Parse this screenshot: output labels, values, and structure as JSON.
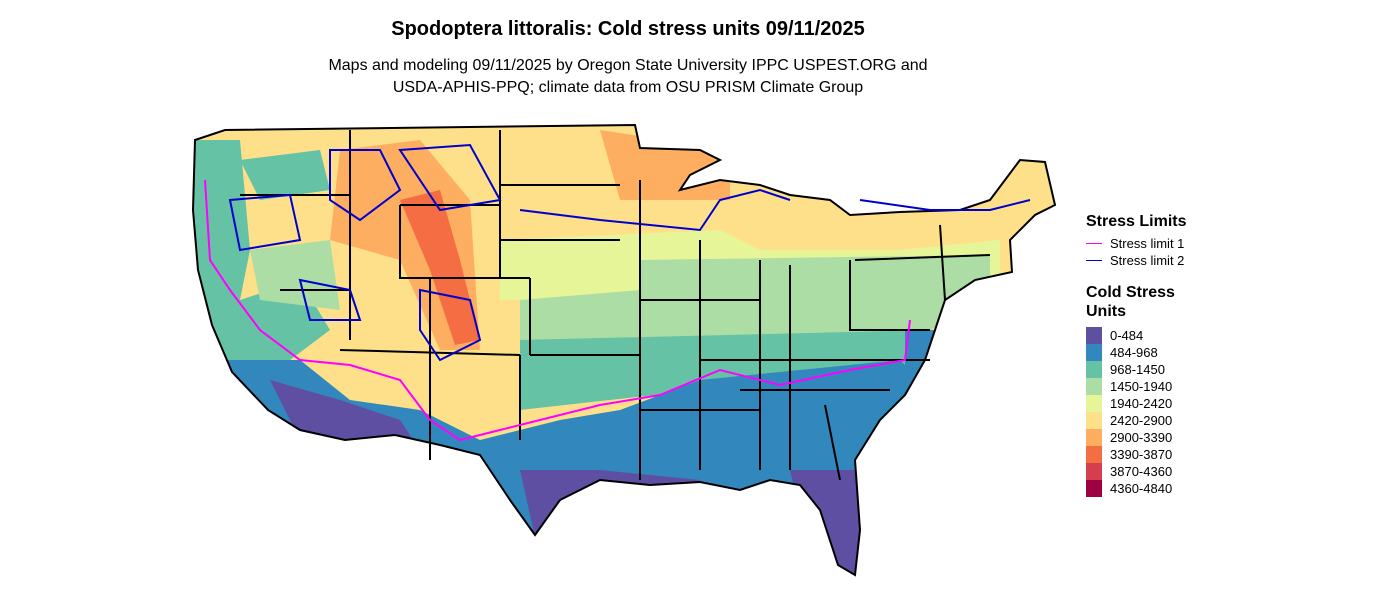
{
  "title": "Spodoptera littoralis: Cold stress units 09/11/2025",
  "subtitle": [
    "Maps and modeling 09/11/2025 by Oregon State University IPPC USPEST.ORG and",
    "USDA-APHIS-PPQ; climate data from OSU PRISM Climate Group"
  ],
  "legend": {
    "stress_title": "Stress Limits",
    "stress_items": [
      {
        "label": "Stress limit 1",
        "color": "#ff00ff"
      },
      {
        "label": "Stress limit 2",
        "color": "#0000cd"
      }
    ],
    "units_title": "Cold Stress Units",
    "units_items": [
      {
        "label": "0-484",
        "color": "#5e4fa2"
      },
      {
        "label": "484-968",
        "color": "#3288bd"
      },
      {
        "label": "968-1450",
        "color": "#66c2a5"
      },
      {
        "label": "1450-1940",
        "color": "#abdda4"
      },
      {
        "label": "1940-2420",
        "color": "#e6f598"
      },
      {
        "label": "2420-2900",
        "color": "#fee08b"
      },
      {
        "label": "2900-3390",
        "color": "#fdae61"
      },
      {
        "label": "3390-3870",
        "color": "#f46d43"
      },
      {
        "label": "3870-4360",
        "color": "#d53e4f"
      },
      {
        "label": "4360-4840",
        "color": "#9e0142"
      }
    ]
  }
}
